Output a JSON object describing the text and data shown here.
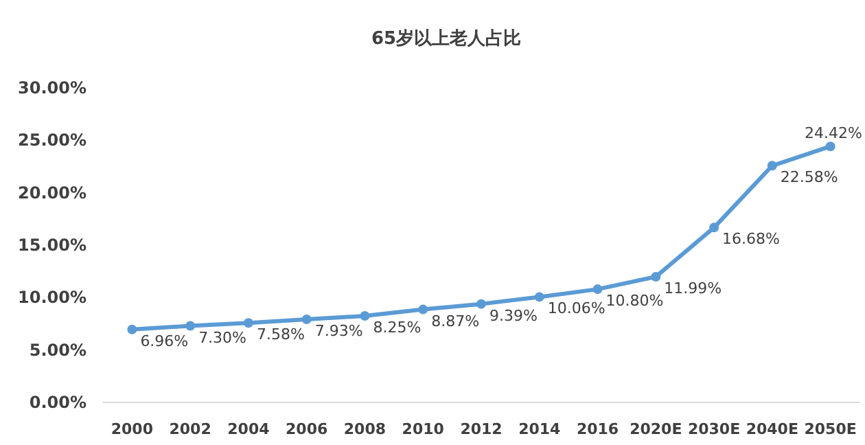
{
  "chart_data": {
    "type": "line",
    "title": "65岁以上老人占比",
    "categories": [
      "2000",
      "2002",
      "2004",
      "2006",
      "2008",
      "2010",
      "2012",
      "2014",
      "2016",
      "2020E",
      "2030E",
      "2040E",
      "2050E"
    ],
    "series": [
      {
        "color": "#5b9bd5",
        "values": [
          6.96,
          7.3,
          7.58,
          7.93,
          8.25,
          8.87,
          9.39,
          10.06,
          10.8,
          11.99,
          16.68,
          22.58,
          24.42
        ],
        "value_labels": [
          "6.96%",
          "7.30%",
          "7.58%",
          "7.93%",
          "8.25%",
          "8.87%",
          "9.39%",
          "10.06%",
          "10.80%",
          "11.99%",
          "16.68%",
          "22.58%",
          "24.42%"
        ]
      }
    ],
    "ylim": [
      0,
      30
    ],
    "yticks": [
      {
        "value": 0,
        "label": "0.00%"
      },
      {
        "value": 5,
        "label": "5.00%"
      },
      {
        "value": 10,
        "label": "10.00%"
      },
      {
        "value": 15,
        "label": "15.00%"
      },
      {
        "value": 20,
        "label": "20.00%"
      },
      {
        "value": 25,
        "label": "25.00%"
      },
      {
        "value": 30,
        "label": "30.00%"
      }
    ],
    "grid": false,
    "marker": "circle",
    "line_style": "solid"
  }
}
